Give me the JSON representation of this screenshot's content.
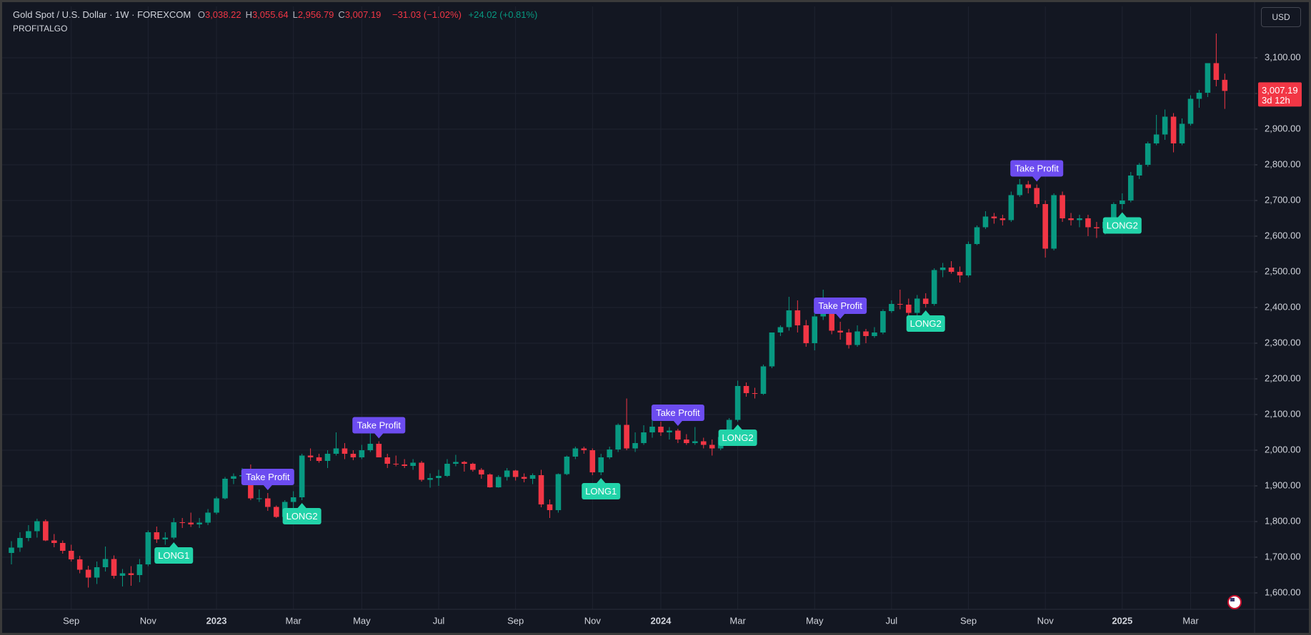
{
  "header": {
    "symbol": "Gold Spot / U.S. Dollar · 1W · FOREXCOM",
    "ohlc": [
      {
        "key": "O",
        "value": "3,038.22"
      },
      {
        "key": "H",
        "value": "3,055.64"
      },
      {
        "key": "L",
        "value": "2,956.79"
      },
      {
        "key": "C",
        "value": "3,007.19"
      }
    ],
    "change": "−31.03 (−1.02%)",
    "extra_change": "+24.02 (+0.81%)",
    "indicator": "PROFITALGO",
    "currency_button": "USD",
    "last_price_label": "3,007.19",
    "countdown": "3d 12h"
  },
  "chart_data": {
    "type": "candlestick",
    "up_color": "#089981",
    "down_color": "#f23645",
    "grid": true,
    "categories": [
      null,
      null,
      null,
      null,
      null,
      null,
      null,
      "Sep",
      null,
      null,
      null,
      null,
      null,
      null,
      null,
      null,
      "Nov",
      null,
      null,
      null,
      null,
      null,
      null,
      null,
      "2023",
      null,
      null,
      null,
      null,
      null,
      null,
      null,
      null,
      "Mar",
      null,
      null,
      null,
      null,
      null,
      null,
      null,
      "May",
      null,
      null,
      null,
      null,
      null,
      null,
      null,
      null,
      "Jul",
      null,
      null,
      null,
      null,
      null,
      null,
      null,
      null,
      "Sep",
      null,
      null,
      null,
      null,
      null,
      null,
      null,
      null,
      "Nov",
      null,
      null,
      null,
      null,
      null,
      null,
      null,
      "2024",
      null,
      null,
      null,
      null,
      null,
      null,
      null,
      null,
      "Mar",
      null,
      null,
      null,
      null,
      null,
      null,
      null,
      null,
      "May",
      null,
      null,
      null,
      null,
      null,
      null,
      null,
      null,
      "Jul",
      null,
      null,
      null,
      null,
      null,
      null,
      null,
      null,
      "Sep",
      null,
      null,
      null,
      null,
      null,
      null,
      null,
      null,
      "Nov",
      null,
      null,
      null,
      null,
      null,
      null,
      null,
      null,
      "2025",
      null,
      null,
      null,
      null,
      null,
      null,
      null,
      "Mar",
      null,
      null,
      null,
      null
    ],
    "open": [
      1712,
      1727,
      1754,
      1773,
      1801,
      1747,
      1740,
      1718,
      1694,
      1665,
      1643,
      1672,
      1695,
      1648,
      1655,
      1650,
      1680,
      1770,
      1750,
      1755,
      1798,
      1797,
      1792,
      1797,
      1825,
      1865,
      1920,
      1927,
      1930,
      1865,
      1865,
      1841,
      1813,
      1855,
      1868,
      1985,
      1980,
      1970,
      1990,
      2005,
      1990,
      1980,
      2000,
      2018,
      1980,
      1962,
      1960,
      1956,
      1965,
      1917,
      1922,
      1928,
      1962,
      1967,
      1962,
      1945,
      1932,
      1896,
      1925,
      1943,
      1925,
      1920,
      1930,
      1848,
      1832,
      1933,
      1982,
      2005,
      2000,
      1938,
      1980,
      2002,
      2071,
      2005,
      2020,
      2050,
      2066,
      2050,
      2055,
      2030,
      2020,
      2025,
      2015,
      2005,
      2037,
      2085,
      2180,
      2160,
      2158,
      2235,
      2330,
      2345,
      2392,
      2350,
      2300,
      2375,
      2415,
      2335,
      2330,
      2295,
      2333,
      2320,
      2330,
      2390,
      2410,
      2408,
      2385,
      2425,
      2410,
      2505,
      2512,
      2500,
      2490,
      2578,
      2625,
      2655,
      2650,
      2645,
      2715,
      2745,
      2735,
      2690,
      2565,
      2715,
      2650,
      2645,
      2650,
      2625,
      2622,
      2640,
      2690,
      2700,
      2770,
      2800,
      2860,
      2885,
      2935,
      2860,
      2915,
      2985,
      3002,
      3085,
      3038.22
    ],
    "high": [
      1745,
      1770,
      1790,
      1808,
      1806,
      1765,
      1747,
      1735,
      1704,
      1676,
      1688,
      1730,
      1705,
      1667,
      1675,
      1695,
      1775,
      1786,
      1770,
      1810,
      1810,
      1825,
      1810,
      1835,
      1870,
      1925,
      1935,
      1950,
      1960,
      1890,
      1880,
      1845,
      1860,
      1885,
      1990,
      2005,
      1990,
      2000,
      2050,
      2020,
      2000,
      2015,
      2080,
      2025,
      1990,
      1985,
      1975,
      1975,
      1970,
      1935,
      1945,
      1975,
      1987,
      1970,
      1965,
      1950,
      1935,
      1930,
      1950,
      1945,
      1935,
      1935,
      1945,
      1862,
      1935,
      1985,
      2010,
      2010,
      2005,
      1990,
      2010,
      2075,
      2145,
      2050,
      2070,
      2088,
      2080,
      2065,
      2060,
      2045,
      2065,
      2035,
      2030,
      2045,
      2090,
      2195,
      2190,
      2175,
      2240,
      2330,
      2350,
      2430,
      2420,
      2365,
      2385,
      2450,
      2425,
      2360,
      2340,
      2350,
      2340,
      2345,
      2395,
      2420,
      2450,
      2425,
      2435,
      2440,
      2510,
      2525,
      2530,
      2515,
      2585,
      2630,
      2670,
      2665,
      2660,
      2725,
      2760,
      2755,
      2745,
      2700,
      2720,
      2725,
      2665,
      2660,
      2660,
      2640,
      2650,
      2695,
      2720,
      2780,
      2805,
      2865,
      2940,
      2955,
      2945,
      2930,
      2995,
      3010,
      3085,
      3168,
      3055.64
    ],
    "low": [
      1680,
      1715,
      1745,
      1755,
      1745,
      1728,
      1710,
      1688,
      1655,
      1615,
      1625,
      1660,
      1640,
      1618,
      1620,
      1630,
      1675,
      1740,
      1735,
      1750,
      1782,
      1785,
      1782,
      1790,
      1820,
      1862,
      1905,
      1915,
      1860,
      1855,
      1830,
      1810,
      1810,
      1830,
      1860,
      1970,
      1965,
      1950,
      1985,
      1975,
      1972,
      1975,
      1995,
      1980,
      1950,
      1955,
      1950,
      1945,
      1912,
      1895,
      1900,
      1925,
      1955,
      1940,
      1940,
      1920,
      1895,
      1895,
      1915,
      1915,
      1910,
      1905,
      1840,
      1810,
      1825,
      1930,
      1975,
      1990,
      1930,
      1930,
      1975,
      1995,
      2000,
      1995,
      2015,
      2035,
      2040,
      2030,
      2020,
      2015,
      2015,
      2005,
      1985,
      2000,
      2035,
      2080,
      2150,
      2145,
      2155,
      2230,
      2320,
      2335,
      2330,
      2290,
      2280,
      2365,
      2325,
      2310,
      2285,
      2290,
      2300,
      2315,
      2325,
      2385,
      2395,
      2355,
      2370,
      2400,
      2405,
      2485,
      2495,
      2470,
      2485,
      2575,
      2620,
      2635,
      2630,
      2640,
      2710,
      2720,
      2680,
      2540,
      2560,
      2640,
      2630,
      2625,
      2600,
      2595,
      2605,
      2635,
      2675,
      2695,
      2760,
      2795,
      2855,
      2870,
      2835,
      2855,
      2910,
      2960,
      2990,
      3020,
      2956.79
    ],
    "close": [
      1727,
      1754,
      1773,
      1801,
      1747,
      1740,
      1718,
      1694,
      1665,
      1643,
      1672,
      1695,
      1648,
      1655,
      1650,
      1680,
      1770,
      1750,
      1755,
      1798,
      1797,
      1792,
      1797,
      1825,
      1865,
      1920,
      1927,
      1930,
      1865,
      1865,
      1841,
      1813,
      1855,
      1868,
      1985,
      1980,
      1970,
      1990,
      2005,
      1990,
      1980,
      2000,
      2018,
      1980,
      1962,
      1960,
      1956,
      1965,
      1917,
      1922,
      1928,
      1962,
      1967,
      1962,
      1945,
      1932,
      1896,
      1925,
      1943,
      1925,
      1920,
      1930,
      1848,
      1832,
      1933,
      1982,
      2005,
      2000,
      1938,
      1980,
      2002,
      2071,
      2005,
      2020,
      2050,
      2066,
      2050,
      2055,
      2030,
      2020,
      2025,
      2015,
      2005,
      2037,
      2085,
      2180,
      2160,
      2158,
      2235,
      2330,
      2345,
      2392,
      2350,
      2300,
      2375,
      2415,
      2335,
      2330,
      2295,
      2333,
      2320,
      2330,
      2390,
      2410,
      2408,
      2385,
      2425,
      2410,
      2505,
      2512,
      2500,
      2490,
      2578,
      2625,
      2655,
      2650,
      2645,
      2715,
      2745,
      2735,
      2690,
      2565,
      2715,
      2650,
      2645,
      2650,
      2625,
      2622,
      2640,
      2690,
      2700,
      2770,
      2800,
      2860,
      2885,
      2935,
      2860,
      2915,
      2985,
      3002,
      3085,
      3038,
      3007.19
    ],
    "ylim": [
      1554,
      3244
    ],
    "yticks": [
      {
        "value": 1600,
        "label": "1,600.00"
      },
      {
        "value": 1700,
        "label": "1,700.00"
      },
      {
        "value": 1800,
        "label": "1,800.00"
      },
      {
        "value": 1900,
        "label": "1,900.00"
      },
      {
        "value": 2000,
        "label": "2,000.00"
      },
      {
        "value": 2100,
        "label": "2,100.00"
      },
      {
        "value": 2200,
        "label": "2,200.00"
      },
      {
        "value": 2300,
        "label": "2,300.00"
      },
      {
        "value": 2400,
        "label": "2,400.00"
      },
      {
        "value": 2500,
        "label": "2,500.00"
      },
      {
        "value": 2600,
        "label": "2,600.00"
      },
      {
        "value": 2700,
        "label": "2,700.00"
      },
      {
        "value": 2800,
        "label": "2,800.00"
      },
      {
        "value": 2900,
        "label": "2,900.00"
      },
      {
        "value": 3000,
        "label": "3,000.00"
      },
      {
        "value": 3100,
        "label": "3,100.00"
      }
    ],
    "annotations": [
      {
        "text": "LONG1",
        "color": "#22d3a9"
      },
      {
        "text": "Take Profit",
        "color": "#6c4cf0"
      },
      {
        "text": "LONG2",
        "color": "#22d3a9"
      },
      {
        "text": "Take Profit",
        "color": "#6c4cf0"
      },
      {
        "text": "LONG1",
        "color": "#22d3a9"
      },
      {
        "text": "Take Profit",
        "color": "#6c4cf0"
      },
      {
        "text": "LONG2",
        "color": "#22d3a9"
      },
      {
        "text": "Take Profit",
        "color": "#6c4cf0"
      },
      {
        "text": "LONG2",
        "color": "#22d3a9"
      },
      {
        "text": "Take Profit",
        "color": "#6c4cf0"
      },
      {
        "text": "LONG2",
        "color": "#22d3a9"
      }
    ]
  }
}
